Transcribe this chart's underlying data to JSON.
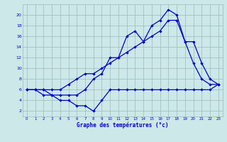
{
  "background_color": "#cce8e8",
  "line_color": "#0000cc",
  "xlabel": "Graphe des températures (°c)",
  "xlim": [
    -0.5,
    23.5
  ],
  "ylim": [
    1,
    22
  ],
  "xticks": [
    0,
    1,
    2,
    3,
    4,
    5,
    6,
    7,
    8,
    9,
    10,
    11,
    12,
    13,
    14,
    15,
    16,
    17,
    18,
    19,
    20,
    21,
    22,
    23
  ],
  "yticks": [
    2,
    4,
    6,
    8,
    10,
    12,
    14,
    16,
    18,
    20
  ],
  "grid_color": "#99bbbb",
  "line1_x": [
    0,
    1,
    2,
    3,
    4,
    5,
    6,
    7,
    8,
    9,
    10,
    11,
    12,
    13,
    14,
    15,
    16,
    17,
    18,
    19,
    20,
    21,
    22,
    23
  ],
  "line1_y": [
    6,
    6,
    6,
    5,
    5,
    5,
    5,
    6,
    8,
    9,
    12,
    12,
    16,
    17,
    15,
    18,
    19,
    21,
    20,
    15,
    11,
    8,
    7,
    7
  ],
  "line2_x": [
    0,
    1,
    2,
    3,
    4,
    5,
    6,
    7,
    8,
    9,
    10,
    11,
    12,
    13,
    14,
    15,
    16,
    17,
    18,
    19,
    20,
    21,
    22,
    23
  ],
  "line2_y": [
    6,
    6,
    5,
    5,
    4,
    4,
    3,
    3,
    2,
    4,
    6,
    6,
    6,
    6,
    6,
    6,
    6,
    6,
    6,
    6,
    6,
    6,
    6,
    7
  ],
  "line3_x": [
    0,
    1,
    2,
    3,
    4,
    5,
    6,
    7,
    8,
    9,
    10,
    11,
    12,
    13,
    14,
    15,
    16,
    17,
    18,
    19,
    20,
    21,
    22,
    23
  ],
  "line3_y": [
    6,
    6,
    6,
    6,
    6,
    7,
    8,
    9,
    9,
    10,
    11,
    12,
    13,
    14,
    15,
    16,
    17,
    19,
    19,
    15,
    15,
    11,
    8,
    7
  ]
}
